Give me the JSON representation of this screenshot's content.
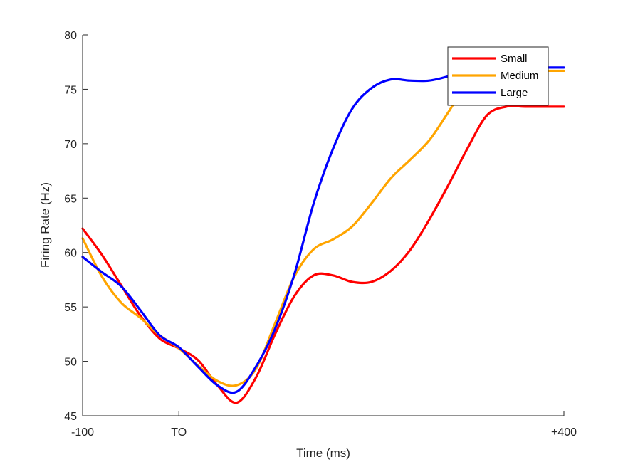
{
  "chart_data": {
    "type": "line",
    "xlabel": "Time (ms)",
    "ylabel": "Firing Rate (Hz)",
    "xlim": [
      -100,
      400
    ],
    "ylim": [
      45,
      80
    ],
    "xticks": [
      {
        "value": -100,
        "label": "-100"
      },
      {
        "value": 0,
        "label": "TO"
      },
      {
        "value": 400,
        "label": "+400"
      }
    ],
    "yticks": [
      45,
      50,
      55,
      60,
      65,
      70,
      75,
      80
    ],
    "grid": false,
    "legend_position": "top-right",
    "x": [
      -100,
      -80,
      -60,
      -40,
      -20,
      0,
      20,
      40,
      60,
      80,
      100,
      120,
      140,
      160,
      180,
      200,
      220,
      240,
      260,
      280,
      300,
      320,
      340,
      360,
      380,
      400
    ],
    "series": [
      {
        "name": "Small",
        "color": "#ff0000",
        "values": [
          62.2,
          59.8,
          57.0,
          54.2,
          52.1,
          51.2,
          50.1,
          47.8,
          46.2,
          48.5,
          52.5,
          56.0,
          57.9,
          57.9,
          57.3,
          57.3,
          58.3,
          60.2,
          63.0,
          66.2,
          69.6,
          72.6,
          73.4,
          73.4,
          73.4,
          73.4
        ]
      },
      {
        "name": "Medium",
        "color": "#ffa500",
        "values": [
          61.3,
          57.8,
          55.4,
          54.0,
          52.4,
          51.2,
          49.6,
          48.2,
          47.8,
          49.3,
          53.5,
          57.8,
          60.3,
          61.2,
          62.4,
          64.5,
          66.8,
          68.5,
          70.3,
          72.9,
          75.6,
          76.7,
          76.7,
          76.7,
          76.7,
          76.7
        ]
      },
      {
        "name": "Large",
        "color": "#0000ff",
        "values": [
          59.6,
          58.2,
          56.9,
          54.7,
          52.4,
          51.3,
          49.5,
          47.8,
          47.2,
          49.5,
          53.0,
          58.0,
          64.5,
          69.5,
          73.2,
          75.1,
          75.9,
          75.8,
          75.8,
          76.2,
          76.8,
          77.0,
          77.0,
          77.0,
          77.0,
          77.0
        ]
      }
    ]
  }
}
